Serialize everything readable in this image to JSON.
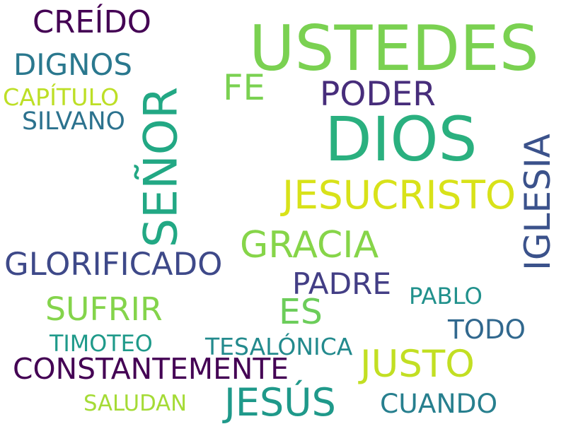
{
  "words": [
    {
      "text": "USTEDES",
      "color": "#7ad151"
    },
    {
      "text": "DIOS",
      "color": "#2ab07f"
    },
    {
      "text": "SEÑOR",
      "color": "#22a884",
      "orientation": "vertical"
    },
    {
      "text": "JESUCRISTO",
      "color": "#d8e219"
    },
    {
      "text": "PODER",
      "color": "#472d7b"
    },
    {
      "text": "CREÍDO",
      "color": "#440154"
    },
    {
      "text": "DIGNOS",
      "color": "#2a788e"
    },
    {
      "text": "FE",
      "color": "#7ad151"
    },
    {
      "text": "CAPÍTULO",
      "color": "#bddf26"
    },
    {
      "text": "SILVANO",
      "color": "#2c728e"
    },
    {
      "text": "IGLESIA",
      "color": "#3b528b",
      "orientation": "vertical"
    },
    {
      "text": "GRACIA",
      "color": "#86d549"
    },
    {
      "text": "GLORIFICADO",
      "color": "#3e4989"
    },
    {
      "text": "PADRE",
      "color": "#433e85"
    },
    {
      "text": "PABLO",
      "color": "#21918c"
    },
    {
      "text": "SUFRIR",
      "color": "#84d44b"
    },
    {
      "text": "ES",
      "color": "#6ccd5a"
    },
    {
      "text": "TODO",
      "color": "#31688e"
    },
    {
      "text": "TIMOTEO",
      "color": "#1f9a8a"
    },
    {
      "text": "TESALÓNICA",
      "color": "#238a8d"
    },
    {
      "text": "CONSTANTEMENTE",
      "color": "#440154"
    },
    {
      "text": "JUSTO",
      "color": "#c2df23"
    },
    {
      "text": "JESÚS",
      "color": "#1f998a"
    },
    {
      "text": "CUANDO",
      "color": "#277f8e"
    },
    {
      "text": "SALUDAN",
      "color": "#a5db36"
    }
  ]
}
